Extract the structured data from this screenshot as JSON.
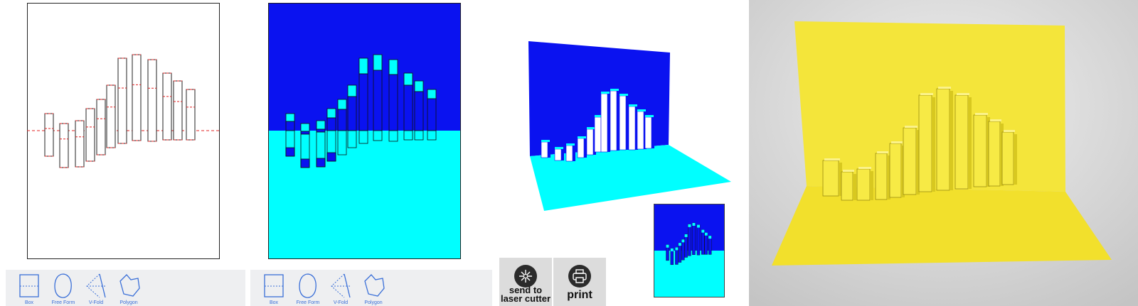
{
  "toolbar": {
    "tools": [
      {
        "label": "Box"
      },
      {
        "label": "Free Form"
      },
      {
        "label": "V-Fold"
      },
      {
        "label": "Polygon"
      }
    ]
  },
  "actions": {
    "laser_cutter_line1": "send to",
    "laser_cutter_line2": "laser cutter",
    "print_label": "print"
  },
  "colors": {
    "card_top": "#0a12f0",
    "card_bottom": "#00ffff",
    "fold_line": "#e02020",
    "tool_icon": "#3a6fd8",
    "paper": "#f5e83a"
  },
  "icons": [
    "box-tool-icon",
    "free-form-tool-icon",
    "v-fold-tool-icon",
    "polygon-tool-icon",
    "laser-icon",
    "printer-icon"
  ]
}
